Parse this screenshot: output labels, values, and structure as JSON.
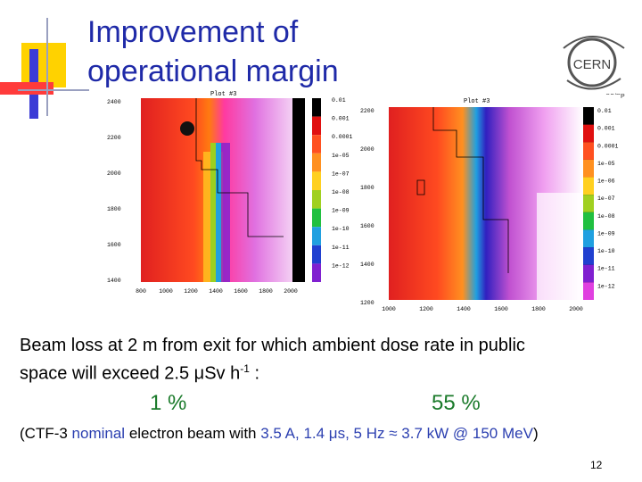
{
  "slide": {
    "title_line1": "Improvement of",
    "title_line2": "operational margin",
    "body_line1": "Beam loss at 2 m from exit for which ambient dose rate in public",
    "body_line2_pre": "space will exceed 2.5 ",
    "body_line2_unit": "Sv h",
    "body_line2_sup": "-1",
    "body_line2_post": " :",
    "mu": "μ",
    "percent_left": "1 %",
    "percent_right": "55 %",
    "note_open": "(CTF-3 ",
    "note_nominal": "nominal",
    "note_electron": " electron beam ",
    "note_with": "with ",
    "note_values": "3.5 A, 1.4 μs, 5 Hz ≈ 3.7 kW @ 150 MeV",
    "note_close": ")",
    "page_number": "12"
  },
  "logo": {
    "name": "CERN",
    "sub": "SC/RP"
  },
  "plot1": {
    "title": "Plot #3",
    "y_ticks": [
      "2400",
      "2200",
      "2000",
      "1800",
      "1600",
      "1400"
    ],
    "x_ticks": [
      "800",
      "1000",
      "1200",
      "1400",
      "1600",
      "1800",
      "2000"
    ],
    "scale": [
      "0.01",
      "0.001",
      "0.0001",
      "1e-05",
      "1e-07",
      "1e-08",
      "1e-09",
      "1e-10",
      "1e-11",
      "1e-12"
    ]
  },
  "plot2": {
    "title": "Plot #3",
    "y_ticks": [
      "2200",
      "2000",
      "1800",
      "1600",
      "1400",
      "1200"
    ],
    "x_ticks": [
      "1000",
      "1200",
      "1400",
      "1600",
      "1800",
      "2000"
    ],
    "scale": [
      "0.01",
      "0.001",
      "0.0001",
      "1e-05",
      "1e-06",
      "1e-07",
      "1e-08",
      "1e-09",
      "1e-10",
      "1e-11",
      "1e-12"
    ]
  },
  "colors": {
    "title": "#1f2aa8",
    "percent": "#1a7a2a",
    "note_accent": "#2b3fb0"
  }
}
